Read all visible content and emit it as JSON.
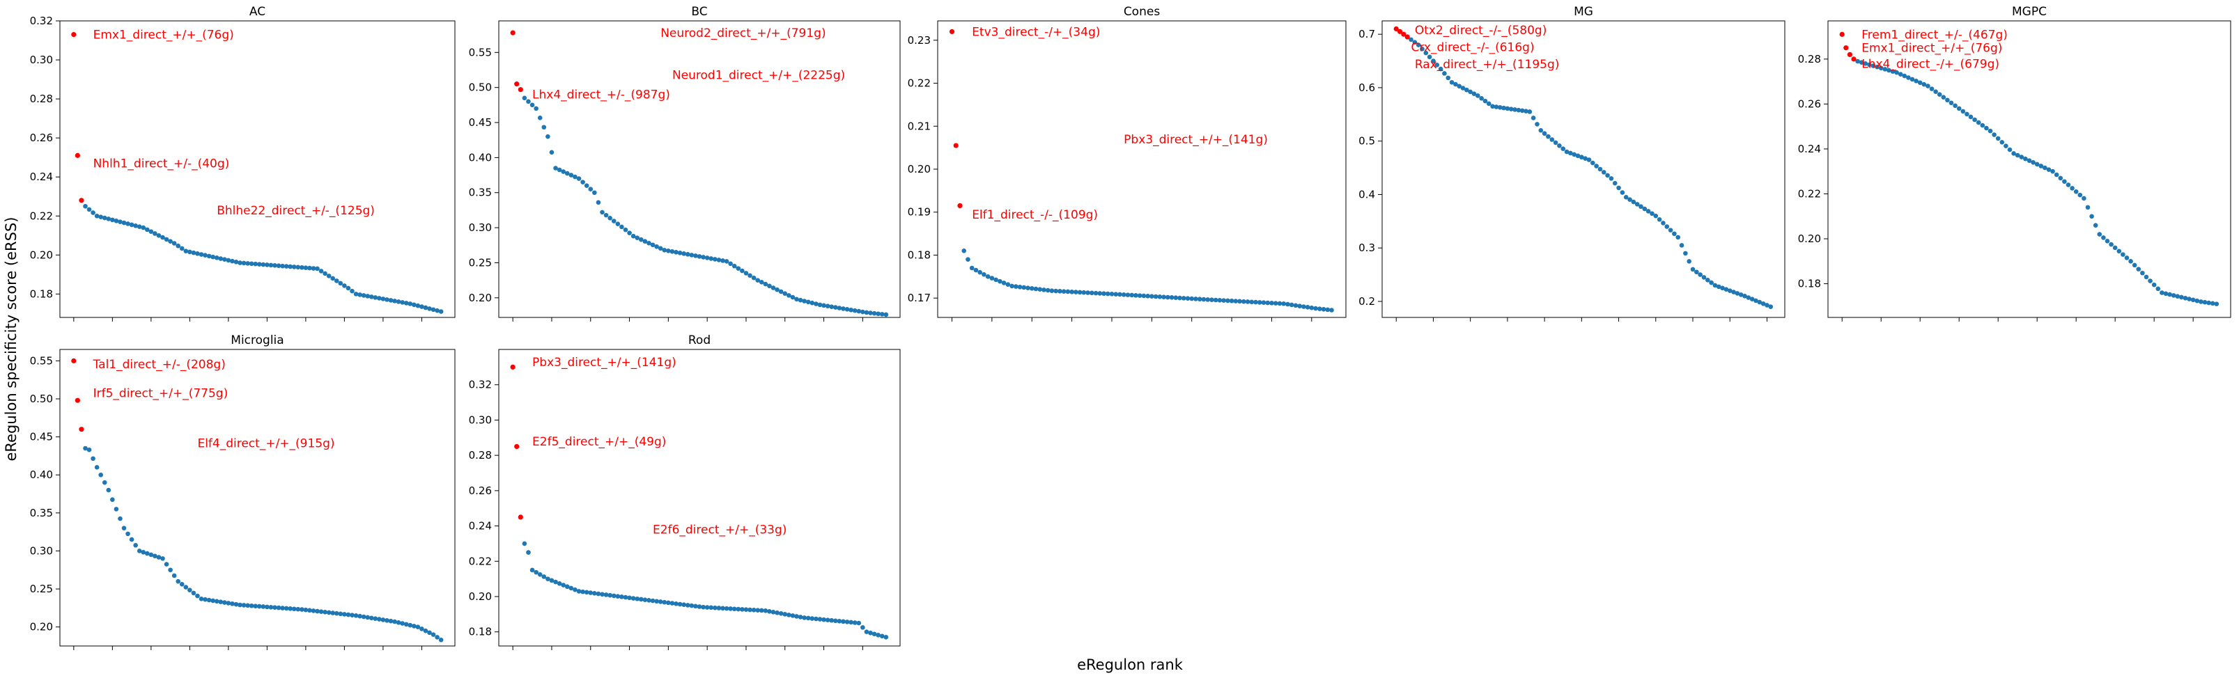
{
  "figure": {
    "xlabel": "eRegulon rank",
    "ylabel": "eRegulon specificity score (eRSS)",
    "colors": {
      "points": "#1f77b4",
      "highlight": "#ff0000",
      "annotation": "#ff0000"
    }
  },
  "chart_data": [
    {
      "type": "scatter",
      "title": "AC",
      "ylim": [
        0.168,
        0.32
      ],
      "yticks": [
        0.18,
        0.2,
        0.22,
        0.24,
        0.26,
        0.28,
        0.3,
        0.32
      ],
      "ytick_labels": [
        "0.18",
        "0.20",
        "0.22",
        "0.24",
        "0.26",
        "0.28",
        "0.30",
        "0.32"
      ],
      "top_values": [
        0.313,
        0.251,
        0.228
      ],
      "rest_anchors": [
        [
          0,
          0.225
        ],
        [
          3,
          0.22
        ],
        [
          15,
          0.214
        ],
        [
          23,
          0.206
        ],
        [
          26,
          0.202
        ],
        [
          40,
          0.196
        ],
        [
          60,
          0.193
        ],
        [
          68,
          0.183
        ],
        [
          70,
          0.18
        ],
        [
          84,
          0.175
        ],
        [
          92,
          0.171
        ]
      ],
      "rest_count": 93,
      "annotations": [
        {
          "text": "Emx1_direct_+/+_(76g)",
          "x": 5,
          "y": 0.313
        },
        {
          "text": "Nhlh1_direct_+/-_(40g)",
          "x": 5,
          "y": 0.247
        },
        {
          "text": "Bhlhe22_direct_+/-_(125g)",
          "x": 37,
          "y": 0.223
        }
      ]
    },
    {
      "type": "scatter",
      "title": "BC",
      "ylim": [
        0.172,
        0.595
      ],
      "yticks": [
        0.2,
        0.25,
        0.3,
        0.35,
        0.4,
        0.45,
        0.5,
        0.55
      ],
      "ytick_labels": [
        "0.20",
        "0.25",
        "0.30",
        "0.35",
        "0.40",
        "0.45",
        "0.50",
        "0.55"
      ],
      "top_values": [
        0.578,
        0.505,
        0.497
      ],
      "rest_anchors": [
        [
          0,
          0.485
        ],
        [
          3,
          0.47
        ],
        [
          6,
          0.43
        ],
        [
          8,
          0.385
        ],
        [
          14,
          0.37
        ],
        [
          18,
          0.35
        ],
        [
          20,
          0.322
        ],
        [
          26,
          0.297
        ],
        [
          28,
          0.288
        ],
        [
          36,
          0.268
        ],
        [
          52,
          0.252
        ],
        [
          60,
          0.225
        ],
        [
          70,
          0.198
        ],
        [
          76,
          0.19
        ],
        [
          88,
          0.179
        ],
        [
          93,
          0.176
        ]
      ],
      "rest_count": 94,
      "annotations": [
        {
          "text": "Neurod2_direct_+/+_(791g)",
          "x": 38,
          "y": 0.578
        },
        {
          "text": "Neurod1_direct_+/+_(2225g)",
          "x": 41,
          "y": 0.518
        },
        {
          "text": "Lhx4_direct_+/-_(987g)",
          "x": 5,
          "y": 0.49
        }
      ]
    },
    {
      "type": "scatter",
      "title": "Cones",
      "ylim": [
        0.1655,
        0.2345
      ],
      "yticks": [
        0.17,
        0.18,
        0.19,
        0.2,
        0.21,
        0.22,
        0.23
      ],
      "ytick_labels": [
        "0.17",
        "0.18",
        "0.19",
        "0.20",
        "0.21",
        "0.22",
        "0.23"
      ],
      "top_values": [
        0.232,
        0.2055,
        0.1915
      ],
      "rest_anchors": [
        [
          0,
          0.181
        ],
        [
          2,
          0.177
        ],
        [
          6,
          0.175
        ],
        [
          12,
          0.1728
        ],
        [
          22,
          0.1717
        ],
        [
          40,
          0.1708
        ],
        [
          60,
          0.1697
        ],
        [
          80,
          0.1687
        ],
        [
          88,
          0.1676
        ],
        [
          92,
          0.1672
        ]
      ],
      "rest_count": 93,
      "annotations": [
        {
          "text": "Etv3_direct_-/+_(34g)",
          "x": 5,
          "y": 0.232
        },
        {
          "text": "Pbx3_direct_+/+_(141g)",
          "x": 43,
          "y": 0.207
        },
        {
          "text": "Elf1_direct_-/-_(109g)",
          "x": 5,
          "y": 0.1895
        }
      ]
    },
    {
      "type": "scatter",
      "title": "MG",
      "ylim": [
        0.17,
        0.725
      ],
      "yticks": [
        0.2,
        0.3,
        0.4,
        0.5,
        0.6,
        0.7
      ],
      "ytick_labels": [
        "0.2",
        "0.3",
        "0.4",
        "0.5",
        "0.6",
        "0.7"
      ],
      "top_values": [
        0.71,
        0.705,
        0.7,
        0.695
      ],
      "rest_anchors": [
        [
          0,
          0.69
        ],
        [
          2,
          0.68
        ],
        [
          8,
          0.635
        ],
        [
          11,
          0.61
        ],
        [
          18,
          0.585
        ],
        [
          22,
          0.565
        ],
        [
          32,
          0.555
        ],
        [
          35,
          0.52
        ],
        [
          42,
          0.48
        ],
        [
          48,
          0.465
        ],
        [
          54,
          0.43
        ],
        [
          58,
          0.395
        ],
        [
          66,
          0.36
        ],
        [
          72,
          0.32
        ],
        [
          76,
          0.26
        ],
        [
          82,
          0.23
        ],
        [
          90,
          0.21
        ],
        [
          97,
          0.19
        ]
      ],
      "rest_count": 98,
      "annotations": [
        {
          "text": "Otx2_direct_-/-_(580g)",
          "x": 5,
          "y": 0.708
        },
        {
          "text": "Crx_direct_-/-_(616g)",
          "x": 4,
          "y": 0.676
        },
        {
          "text": "Rax_direct_+/+_(1195g)",
          "x": 5,
          "y": 0.644
        }
      ]
    },
    {
      "type": "scatter",
      "title": "MGPC",
      "ylim": [
        0.165,
        0.297
      ],
      "yticks": [
        0.18,
        0.2,
        0.22,
        0.24,
        0.26,
        0.28
      ],
      "ytick_labels": [
        "0.18",
        "0.20",
        "0.22",
        "0.24",
        "0.26",
        "0.28"
      ],
      "top_values": [
        0.291,
        0.285,
        0.282,
        0.28
      ],
      "rest_anchors": [
        [
          0,
          0.279
        ],
        [
          10,
          0.274
        ],
        [
          18,
          0.268
        ],
        [
          26,
          0.258
        ],
        [
          34,
          0.248
        ],
        [
          40,
          0.238
        ],
        [
          50,
          0.23
        ],
        [
          58,
          0.218
        ],
        [
          62,
          0.202
        ],
        [
          70,
          0.19
        ],
        [
          78,
          0.176
        ],
        [
          88,
          0.172
        ],
        [
          92,
          0.171
        ]
      ],
      "rest_count": 93,
      "annotations": [
        {
          "text": "Frem1_direct_+/-_(467g)",
          "x": 5,
          "y": 0.291
        },
        {
          "text": "Emx1_direct_+/+_(76g)",
          "x": 5,
          "y": 0.285
        },
        {
          "text": "Lhx4_direct_-/+_(679g)",
          "x": 5,
          "y": 0.278
        }
      ]
    },
    {
      "type": "scatter",
      "title": "Microglia",
      "ylim": [
        0.175,
        0.565
      ],
      "yticks": [
        0.2,
        0.25,
        0.3,
        0.35,
        0.4,
        0.45,
        0.5,
        0.55
      ],
      "ytick_labels": [
        "0.20",
        "0.25",
        "0.30",
        "0.35",
        "0.40",
        "0.45",
        "0.50",
        "0.55"
      ],
      "top_values": [
        0.55,
        0.498,
        0.46
      ],
      "rest_anchors": [
        [
          0,
          0.435
        ],
        [
          1,
          0.433
        ],
        [
          3,
          0.41
        ],
        [
          6,
          0.38
        ],
        [
          10,
          0.33
        ],
        [
          14,
          0.3
        ],
        [
          20,
          0.29
        ],
        [
          24,
          0.26
        ],
        [
          30,
          0.237
        ],
        [
          40,
          0.229
        ],
        [
          56,
          0.223
        ],
        [
          70,
          0.215
        ],
        [
          80,
          0.207
        ],
        [
          86,
          0.2
        ],
        [
          90,
          0.19
        ],
        [
          92,
          0.183
        ]
      ],
      "rest_count": 93,
      "annotations": [
        {
          "text": "Tal1_direct_+/-_(208g)",
          "x": 5,
          "y": 0.546
        },
        {
          "text": "Irf5_direct_+/+_(775g)",
          "x": 5,
          "y": 0.508
        },
        {
          "text": "Elf4_direct_+/+_(915g)",
          "x": 32,
          "y": 0.442
        }
      ]
    },
    {
      "type": "scatter",
      "title": "Rod",
      "ylim": [
        0.172,
        0.34
      ],
      "yticks": [
        0.18,
        0.2,
        0.22,
        0.24,
        0.26,
        0.28,
        0.3,
        0.32
      ],
      "ytick_labels": [
        "0.18",
        "0.20",
        "0.22",
        "0.24",
        "0.26",
        "0.28",
        "0.30",
        "0.32"
      ],
      "top_values": [
        0.33,
        0.285,
        0.245
      ],
      "rest_anchors": [
        [
          0,
          0.23
        ],
        [
          1,
          0.225
        ],
        [
          2,
          0.215
        ],
        [
          6,
          0.21
        ],
        [
          14,
          0.203
        ],
        [
          28,
          0.199
        ],
        [
          46,
          0.194
        ],
        [
          62,
          0.192
        ],
        [
          72,
          0.188
        ],
        [
          86,
          0.185
        ],
        [
          88,
          0.18
        ],
        [
          93,
          0.177
        ]
      ],
      "rest_count": 94,
      "annotations": [
        {
          "text": "Pbx3_direct_+/+_(141g)",
          "x": 5,
          "y": 0.333
        },
        {
          "text": "E2f5_direct_+/+_(49g)",
          "x": 5,
          "y": 0.288
        },
        {
          "text": "E2f6_direct_+/+_(33g)",
          "x": 36,
          "y": 0.238
        }
      ]
    }
  ]
}
